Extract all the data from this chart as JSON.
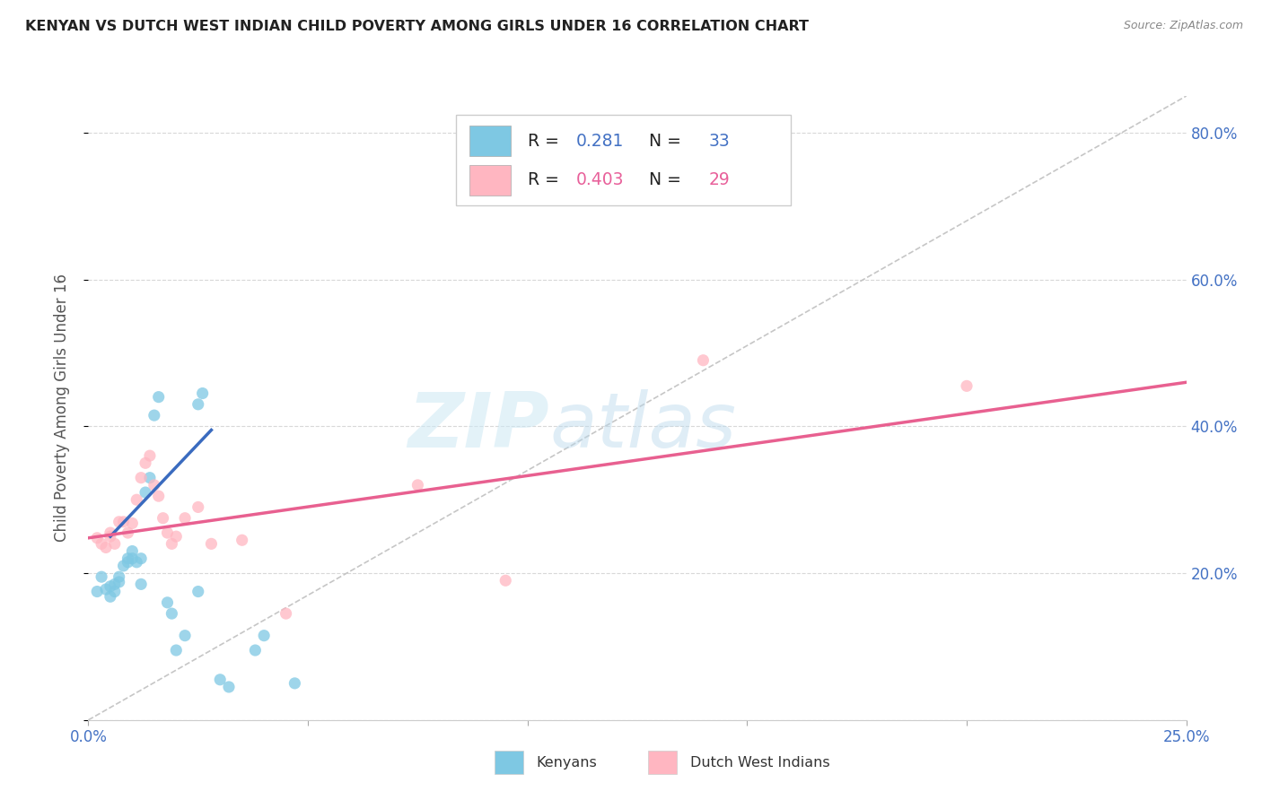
{
  "title": "KENYAN VS DUTCH WEST INDIAN CHILD POVERTY AMONG GIRLS UNDER 16 CORRELATION CHART",
  "source": "Source: ZipAtlas.com",
  "ylabel": "Child Poverty Among Girls Under 16",
  "xlim": [
    0.0,
    0.25
  ],
  "ylim": [
    0.0,
    0.85
  ],
  "xticks": [
    0.0,
    0.05,
    0.1,
    0.15,
    0.2,
    0.25
  ],
  "yticks": [
    0.0,
    0.2,
    0.4,
    0.6,
    0.8
  ],
  "ytick_labels": [
    "",
    "20.0%",
    "40.0%",
    "60.0%",
    "80.0%"
  ],
  "xtick_labels": [
    "0.0%",
    "",
    "",
    "",
    "",
    "25.0%"
  ],
  "blue_color": "#7ec8e3",
  "pink_color": "#ffb6c1",
  "blue_scatter": [
    [
      0.002,
      0.175
    ],
    [
      0.003,
      0.195
    ],
    [
      0.004,
      0.178
    ],
    [
      0.005,
      0.182
    ],
    [
      0.005,
      0.168
    ],
    [
      0.006,
      0.185
    ],
    [
      0.006,
      0.175
    ],
    [
      0.007,
      0.195
    ],
    [
      0.007,
      0.188
    ],
    [
      0.008,
      0.21
    ],
    [
      0.009,
      0.22
    ],
    [
      0.009,
      0.215
    ],
    [
      0.01,
      0.22
    ],
    [
      0.01,
      0.23
    ],
    [
      0.011,
      0.215
    ],
    [
      0.012,
      0.185
    ],
    [
      0.012,
      0.22
    ],
    [
      0.013,
      0.31
    ],
    [
      0.014,
      0.33
    ],
    [
      0.015,
      0.415
    ],
    [
      0.016,
      0.44
    ],
    [
      0.018,
      0.16
    ],
    [
      0.019,
      0.145
    ],
    [
      0.02,
      0.095
    ],
    [
      0.022,
      0.115
    ],
    [
      0.025,
      0.175
    ],
    [
      0.025,
      0.43
    ],
    [
      0.026,
      0.445
    ],
    [
      0.03,
      0.055
    ],
    [
      0.032,
      0.045
    ],
    [
      0.038,
      0.095
    ],
    [
      0.04,
      0.115
    ],
    [
      0.047,
      0.05
    ]
  ],
  "pink_scatter": [
    [
      0.002,
      0.248
    ],
    [
      0.003,
      0.24
    ],
    [
      0.004,
      0.235
    ],
    [
      0.005,
      0.25
    ],
    [
      0.005,
      0.255
    ],
    [
      0.006,
      0.24
    ],
    [
      0.007,
      0.27
    ],
    [
      0.008,
      0.27
    ],
    [
      0.009,
      0.255
    ],
    [
      0.01,
      0.268
    ],
    [
      0.011,
      0.3
    ],
    [
      0.012,
      0.33
    ],
    [
      0.013,
      0.35
    ],
    [
      0.014,
      0.36
    ],
    [
      0.015,
      0.32
    ],
    [
      0.016,
      0.305
    ],
    [
      0.017,
      0.275
    ],
    [
      0.018,
      0.255
    ],
    [
      0.019,
      0.24
    ],
    [
      0.02,
      0.25
    ],
    [
      0.022,
      0.275
    ],
    [
      0.025,
      0.29
    ],
    [
      0.028,
      0.24
    ],
    [
      0.035,
      0.245
    ],
    [
      0.045,
      0.145
    ],
    [
      0.075,
      0.32
    ],
    [
      0.095,
      0.19
    ],
    [
      0.14,
      0.49
    ],
    [
      0.2,
      0.455
    ]
  ],
  "blue_line_x": [
    0.005,
    0.028
  ],
  "blue_line_y": [
    0.25,
    0.395
  ],
  "pink_line_x": [
    0.0,
    0.25
  ],
  "pink_line_y": [
    0.248,
    0.46
  ],
  "diag_line_x": [
    0.0,
    0.25
  ],
  "diag_line_y": [
    0.0,
    0.85
  ],
  "watermark_zip": "ZIP",
  "watermark_atlas": "atlas",
  "legend_text_1": "R =  0.281   N = 33",
  "legend_text_2": "R =  0.403   N = 29",
  "legend_r1_val": "0.281",
  "legend_n1_val": "33",
  "legend_r2_val": "0.403",
  "legend_n2_val": "29",
  "bottom_label_1": "Kenyans",
  "bottom_label_2": "Dutch West Indians"
}
